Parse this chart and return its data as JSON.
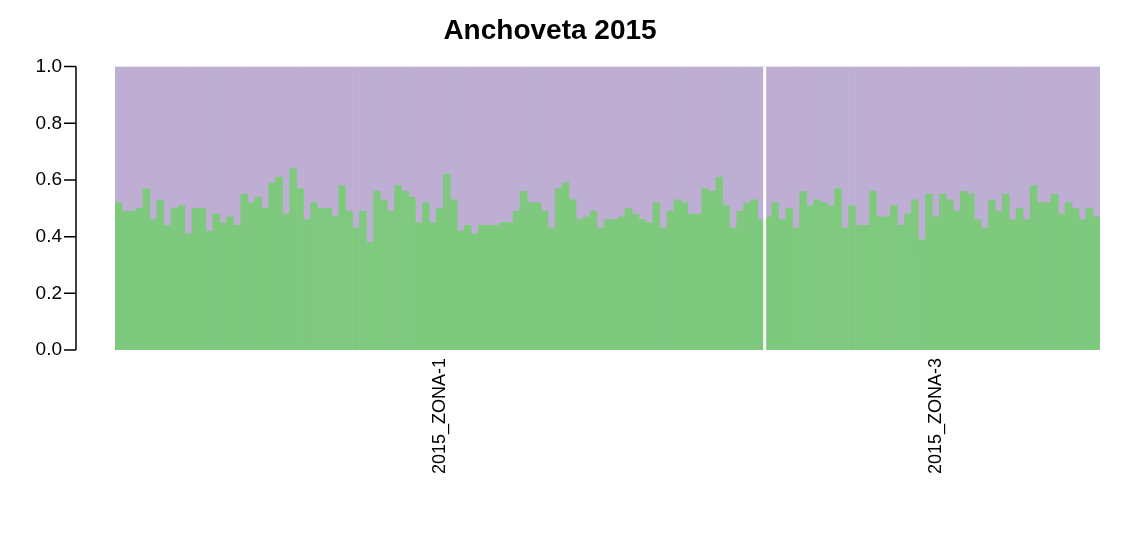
{
  "chart_data": {
    "type": "bar",
    "title": "Anchoveta 2015",
    "stacked": true,
    "categories": [
      null,
      null,
      null,
      null,
      null,
      null,
      null,
      null,
      null,
      null,
      null,
      null,
      null,
      null,
      null,
      null,
      null,
      null,
      null,
      null,
      null,
      null,
      null,
      null,
      null,
      null,
      null,
      null,
      null,
      null,
      null,
      null,
      null,
      null,
      null,
      null,
      null,
      null,
      null,
      null,
      null,
      null,
      null,
      null,
      null,
      null,
      "2015_ZONA-1",
      null,
      null,
      null,
      null,
      null,
      null,
      null,
      null,
      null,
      null,
      null,
      null,
      null,
      null,
      null,
      null,
      null,
      null,
      null,
      null,
      null,
      null,
      null,
      null,
      null,
      null,
      null,
      null,
      null,
      null,
      null,
      null,
      null,
      null,
      null,
      null,
      null,
      null,
      null,
      null,
      null,
      null,
      null,
      null,
      null,
      null,
      null,
      null,
      null,
      null,
      null,
      null,
      null,
      null,
      null,
      null,
      null,
      null,
      null,
      null,
      null,
      null,
      null,
      null,
      null,
      null,
      null,
      null,
      null,
      null,
      "2015_ZONA-3",
      null,
      null,
      null,
      null,
      null,
      null,
      null,
      null,
      null,
      null,
      null,
      null,
      null,
      null,
      null,
      null,
      null,
      null,
      null,
      null,
      null,
      null,
      null
    ],
    "series": [
      {
        "color": "#7fc97f",
        "values": [
          0.52,
          0.49,
          0.49,
          0.5,
          0.57,
          0.46,
          0.53,
          0.44,
          0.5,
          0.51,
          0.41,
          0.5,
          0.5,
          0.42,
          0.48,
          0.45,
          0.47,
          0.44,
          0.55,
          0.52,
          0.54,
          0.5,
          0.59,
          0.61,
          0.48,
          0.64,
          0.57,
          0.46,
          0.52,
          0.5,
          0.5,
          0.47,
          0.58,
          0.49,
          0.43,
          0.49,
          0.38,
          0.56,
          0.53,
          0.49,
          0.58,
          0.56,
          0.54,
          0.45,
          0.52,
          0.45,
          0.5,
          0.62,
          0.53,
          0.42,
          0.44,
          0.41,
          0.44,
          0.44,
          0.44,
          0.45,
          0.45,
          0.49,
          0.56,
          0.52,
          0.52,
          0.49,
          0.43,
          0.57,
          0.59,
          0.53,
          0.46,
          0.47,
          0.49,
          0.43,
          0.46,
          0.46,
          0.47,
          0.5,
          0.48,
          0.46,
          0.45,
          0.52,
          0.43,
          0.49,
          0.53,
          0.52,
          0.48,
          0.48,
          0.57,
          0.56,
          0.61,
          0.51,
          0.43,
          0.49,
          0.52,
          0.53,
          0.46,
          0.47,
          0.52,
          0.46,
          0.5,
          0.43,
          0.56,
          0.51,
          0.53,
          0.52,
          0.51,
          0.57,
          0.43,
          0.51,
          0.44,
          0.44,
          0.56,
          0.47,
          0.47,
          0.51,
          0.44,
          0.48,
          0.53,
          0.39,
          0.55,
          0.47,
          0.55,
          0.53,
          0.49,
          0.56,
          0.55,
          0.46,
          0.43,
          0.53,
          0.49,
          0.55,
          0.46,
          0.5,
          0.46,
          0.58,
          0.52,
          0.52,
          0.55,
          0.48,
          0.52,
          0.5,
          0.46,
          0.5,
          0.47
        ]
      },
      {
        "color": "#beaed4",
        "values": [
          0.48,
          0.51,
          0.51,
          0.5,
          0.43,
          0.54,
          0.47,
          0.56,
          0.5,
          0.49,
          0.59,
          0.5,
          0.5,
          0.58,
          0.52,
          0.55,
          0.53,
          0.56,
          0.45,
          0.48,
          0.46,
          0.5,
          0.41,
          0.39,
          0.52,
          0.36,
          0.43,
          0.54,
          0.48,
          0.5,
          0.5,
          0.53,
          0.42,
          0.51,
          0.57,
          0.51,
          0.62,
          0.44,
          0.47,
          0.51,
          0.42,
          0.44,
          0.46,
          0.55,
          0.48,
          0.55,
          0.5,
          0.38,
          0.47,
          0.58,
          0.56,
          0.59,
          0.56,
          0.56,
          0.56,
          0.55,
          0.55,
          0.51,
          0.44,
          0.48,
          0.48,
          0.51,
          0.57,
          0.43,
          0.41,
          0.47,
          0.54,
          0.53,
          0.51,
          0.57,
          0.54,
          0.54,
          0.53,
          0.5,
          0.52,
          0.54,
          0.55,
          0.48,
          0.57,
          0.51,
          0.47,
          0.48,
          0.52,
          0.52,
          0.43,
          0.44,
          0.39,
          0.49,
          0.57,
          0.51,
          0.48,
          0.47,
          0.54,
          0.53,
          0.48,
          0.54,
          0.5,
          0.57,
          0.44,
          0.49,
          0.47,
          0.48,
          0.49,
          0.43,
          0.57,
          0.49,
          0.56,
          0.56,
          0.44,
          0.53,
          0.53,
          0.49,
          0.56,
          0.52,
          0.47,
          0.61,
          0.45,
          0.53,
          0.45,
          0.47,
          0.51,
          0.44,
          0.45,
          0.54,
          0.57,
          0.47,
          0.51,
          0.45,
          0.54,
          0.5,
          0.54,
          0.42,
          0.48,
          0.48,
          0.45,
          0.52,
          0.48,
          0.5,
          0.54,
          0.5,
          0.53
        ]
      }
    ],
    "ylim": [
      0,
      1
    ],
    "yticks": [
      {
        "value": 0,
        "label": "0.0"
      },
      {
        "value": 0.2,
        "label": "0.2"
      },
      {
        "value": 0.4,
        "label": "0.4"
      },
      {
        "value": 0.6,
        "label": "0.6"
      },
      {
        "value": 0.8,
        "label": "0.8"
      },
      {
        "value": 1,
        "label": "1.0"
      }
    ],
    "grid": false,
    "legend": false
  }
}
